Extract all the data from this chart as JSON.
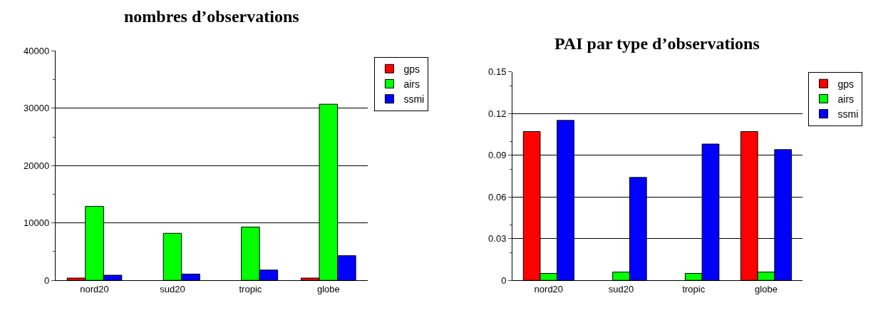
{
  "chart_data": [
    {
      "type": "bar",
      "title": "nombres d’observations",
      "categories": [
        "nord20",
        "sud20",
        "tropic",
        "globe"
      ],
      "series": [
        {
          "name": "gps",
          "color": "#ff0000",
          "values": [
            400,
            null,
            null,
            400
          ]
        },
        {
          "name": "airs",
          "color": "#00ff00",
          "values": [
            12900,
            8200,
            9300,
            30700
          ]
        },
        {
          "name": "ssmi",
          "color": "#0000ff",
          "values": [
            900,
            1100,
            1800,
            4300
          ]
        }
      ],
      "ylim": [
        0,
        40000
      ],
      "yticks": [
        0,
        10000,
        20000,
        30000,
        40000
      ],
      "grid": "y",
      "legend": "top right"
    },
    {
      "type": "bar",
      "title": "PAI par type d’observations",
      "categories": [
        "nord20",
        "sud20",
        "tropic",
        "globe"
      ],
      "series": [
        {
          "name": "gps",
          "color": "#ff0000",
          "values": [
            0.107,
            null,
            null,
            0.107
          ]
        },
        {
          "name": "airs",
          "color": "#00ff00",
          "values": [
            0.005,
            0.006,
            0.005,
            0.006
          ]
        },
        {
          "name": "ssmi",
          "color": "#0000ff",
          "values": [
            0.115,
            0.074,
            0.098,
            0.094
          ]
        }
      ],
      "ylim": [
        0,
        0.15
      ],
      "yticks": [
        0,
        0.03,
        0.06,
        0.09,
        0.12,
        0.15
      ],
      "grid": "y",
      "legend": "top right"
    }
  ]
}
